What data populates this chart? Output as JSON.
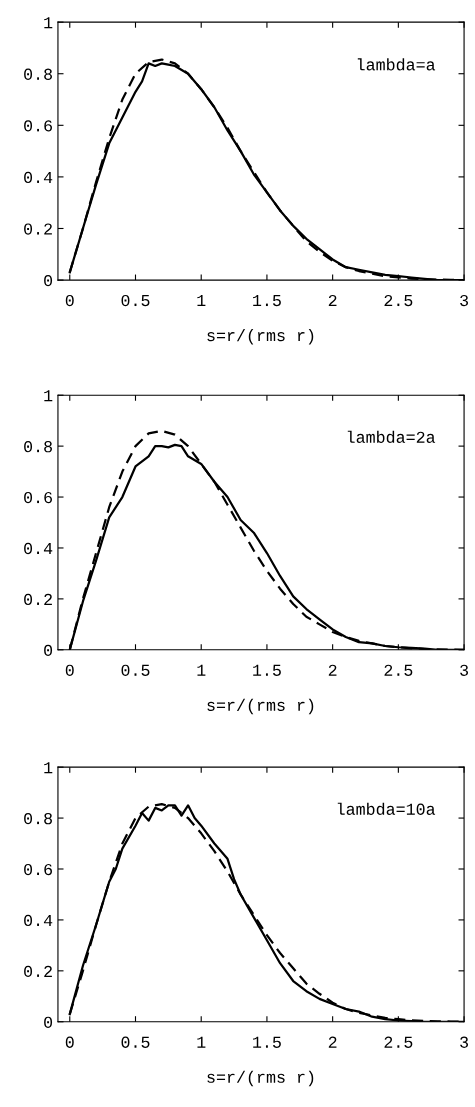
{
  "chart_data": [
    {
      "type": "line",
      "xlabel": "s=r/(rms r)",
      "annotations": [
        "lambda=a"
      ],
      "xlim": [
        -0.09,
        3.0
      ],
      "ylim": [
        0,
        1
      ],
      "xticks": [
        0,
        0.5,
        1,
        1.5,
        2,
        2.5,
        3
      ],
      "yticks": [
        0,
        0.2,
        0.4,
        0.6,
        0.8,
        1
      ],
      "grid": false,
      "series": [
        {
          "color": "#000000",
          "line_style": "solid",
          "x": [
            0,
            0.1,
            0.2,
            0.3,
            0.4,
            0.5,
            0.55,
            0.6,
            0.65,
            0.7,
            0.75,
            0.8,
            0.9,
            1.0,
            1.1,
            1.2,
            1.3,
            1.4,
            1.5,
            1.6,
            1.7,
            1.8,
            1.9,
            2.0,
            2.1,
            2.2,
            2.3,
            2.4,
            2.5,
            2.6,
            2.7,
            2.8,
            2.9,
            3.0
          ],
          "values": [
            0.03,
            0.2,
            0.37,
            0.53,
            0.63,
            0.73,
            0.77,
            0.84,
            0.83,
            0.84,
            0.835,
            0.83,
            0.8,
            0.74,
            0.67,
            0.58,
            0.5,
            0.41,
            0.34,
            0.27,
            0.21,
            0.16,
            0.12,
            0.08,
            0.05,
            0.04,
            0.03,
            0.02,
            0.015,
            0.01,
            0.005,
            0,
            0,
            0
          ]
        },
        {
          "color": "#000000",
          "line_style": "dashed",
          "x": [
            0,
            0.1,
            0.2,
            0.3,
            0.4,
            0.5,
            0.6,
            0.7,
            0.8,
            0.9,
            1.0,
            1.1,
            1.2,
            1.3,
            1.4,
            1.5,
            1.6,
            1.7,
            1.8,
            1.9,
            2.0,
            2.1,
            2.2,
            2.3,
            2.4,
            2.5,
            2.6,
            2.7,
            2.8,
            2.9,
            3.0
          ],
          "values": [
            0.03,
            0.2,
            0.38,
            0.55,
            0.7,
            0.8,
            0.845,
            0.855,
            0.84,
            0.8,
            0.74,
            0.67,
            0.59,
            0.5,
            0.42,
            0.34,
            0.27,
            0.21,
            0.15,
            0.11,
            0.075,
            0.05,
            0.035,
            0.025,
            0.015,
            0.01,
            0.006,
            0.003,
            0.002,
            0.001,
            0
          ]
        }
      ]
    },
    {
      "type": "line",
      "xlabel": "s=r/(rms r)",
      "annotations": [
        "lambda=2a"
      ],
      "xlim": [
        -0.09,
        3.0
      ],
      "ylim": [
        0,
        1
      ],
      "xticks": [
        0,
        0.5,
        1,
        1.5,
        2,
        2.5,
        3
      ],
      "yticks": [
        0,
        0.2,
        0.4,
        0.6,
        0.8,
        1
      ],
      "grid": false,
      "series": [
        {
          "color": "#000000",
          "line_style": "solid",
          "x": [
            0,
            0.1,
            0.2,
            0.3,
            0.4,
            0.5,
            0.6,
            0.65,
            0.7,
            0.75,
            0.8,
            0.85,
            0.9,
            1.0,
            1.1,
            1.2,
            1.3,
            1.4,
            1.5,
            1.6,
            1.7,
            1.8,
            1.9,
            2.0,
            2.1,
            2.2,
            2.3,
            2.4,
            2.5,
            2.6,
            2.7,
            2.8,
            2.9,
            3.0
          ],
          "values": [
            0,
            0.19,
            0.35,
            0.52,
            0.6,
            0.72,
            0.76,
            0.8,
            0.8,
            0.795,
            0.805,
            0.8,
            0.76,
            0.73,
            0.66,
            0.6,
            0.51,
            0.46,
            0.38,
            0.29,
            0.21,
            0.16,
            0.12,
            0.08,
            0.05,
            0.03,
            0.025,
            0.015,
            0.01,
            0.008,
            0.005,
            0,
            0,
            0
          ]
        },
        {
          "color": "#000000",
          "line_style": "dashed",
          "x": [
            0,
            0.1,
            0.2,
            0.3,
            0.4,
            0.5,
            0.6,
            0.7,
            0.8,
            0.9,
            1.0,
            1.1,
            1.2,
            1.3,
            1.4,
            1.5,
            1.6,
            1.7,
            1.8,
            1.9,
            2.0,
            2.1,
            2.2,
            2.3,
            2.4,
            2.5,
            2.6,
            2.7,
            2.8,
            2.9,
            3.0
          ],
          "values": [
            0,
            0.2,
            0.38,
            0.56,
            0.7,
            0.8,
            0.85,
            0.86,
            0.845,
            0.8,
            0.73,
            0.66,
            0.57,
            0.48,
            0.39,
            0.31,
            0.24,
            0.18,
            0.13,
            0.1,
            0.07,
            0.05,
            0.035,
            0.025,
            0.015,
            0.01,
            0.006,
            0.003,
            0.002,
            0.001,
            0
          ]
        }
      ]
    },
    {
      "type": "line",
      "xlabel": "s=r/(rms r)",
      "annotations": [
        "lambda=10a"
      ],
      "xlim": [
        -0.09,
        3.0
      ],
      "ylim": [
        0,
        1
      ],
      "xticks": [
        0,
        0.5,
        1,
        1.5,
        2,
        2.5,
        3
      ],
      "yticks": [
        0,
        0.2,
        0.4,
        0.6,
        0.8,
        1
      ],
      "grid": false,
      "series": [
        {
          "color": "#000000",
          "line_style": "solid",
          "x": [
            0,
            0.1,
            0.2,
            0.3,
            0.35,
            0.4,
            0.5,
            0.55,
            0.6,
            0.65,
            0.7,
            0.75,
            0.8,
            0.85,
            0.9,
            0.95,
            1.0,
            1.1,
            1.2,
            1.25,
            1.3,
            1.4,
            1.5,
            1.6,
            1.7,
            1.8,
            1.9,
            2.0,
            2.1,
            2.2,
            2.3,
            2.4,
            2.5,
            2.6,
            2.7,
            2.8,
            3.0
          ],
          "values": [
            0.03,
            0.22,
            0.38,
            0.55,
            0.6,
            0.68,
            0.77,
            0.82,
            0.79,
            0.84,
            0.83,
            0.85,
            0.85,
            0.81,
            0.85,
            0.8,
            0.77,
            0.7,
            0.64,
            0.56,
            0.5,
            0.41,
            0.32,
            0.23,
            0.16,
            0.12,
            0.09,
            0.07,
            0.05,
            0.04,
            0.02,
            0.01,
            0.005,
            0.003,
            0,
            0,
            0
          ]
        },
        {
          "color": "#000000",
          "line_style": "dashed",
          "x": [
            0,
            0.1,
            0.2,
            0.3,
            0.4,
            0.5,
            0.6,
            0.7,
            0.8,
            0.9,
            1.0,
            1.1,
            1.2,
            1.3,
            1.4,
            1.5,
            1.6,
            1.7,
            1.8,
            1.9,
            2.0,
            2.1,
            2.2,
            2.3,
            2.4,
            2.5,
            2.6,
            2.7,
            2.8,
            2.9,
            3.0
          ],
          "values": [
            0.03,
            0.2,
            0.38,
            0.55,
            0.7,
            0.8,
            0.845,
            0.855,
            0.84,
            0.8,
            0.74,
            0.67,
            0.59,
            0.5,
            0.42,
            0.34,
            0.27,
            0.21,
            0.15,
            0.11,
            0.075,
            0.05,
            0.035,
            0.025,
            0.015,
            0.01,
            0.006,
            0.003,
            0.002,
            0.001,
            0
          ]
        }
      ]
    }
  ]
}
